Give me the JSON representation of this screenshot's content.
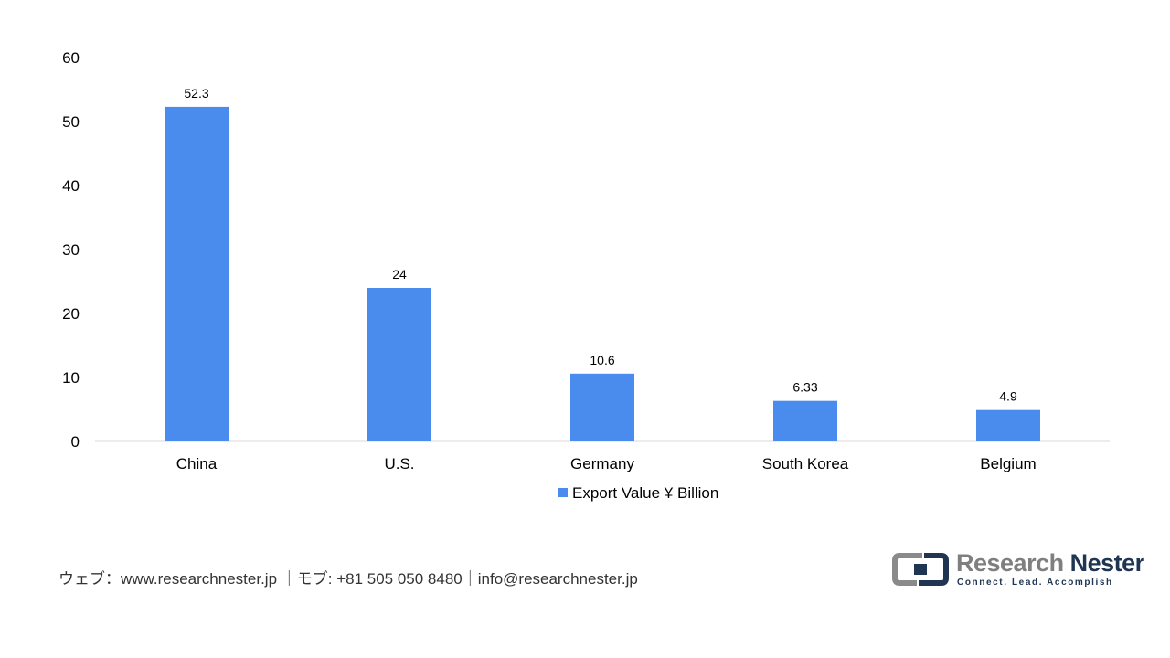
{
  "chart_data": {
    "type": "bar",
    "categories": [
      "China",
      "U.S.",
      "Germany",
      "South Korea",
      "Belgium"
    ],
    "series": [
      {
        "name": "Export Value ¥ Billion",
        "values": [
          52.3,
          24,
          10.6,
          6.33,
          4.9
        ],
        "color": "#4a8cee"
      }
    ],
    "data_labels": [
      "52.3",
      "24",
      "10.6",
      "6.33",
      "4.9"
    ],
    "yticks": [
      0,
      10,
      20,
      30,
      40,
      50,
      60
    ],
    "ylim": [
      0,
      60
    ],
    "grid": false,
    "legend_position": "bottom"
  },
  "footer": {
    "contact": "ウェブ：www.researchnester.jp ｜モブ: +81 505 050 8480｜info@researchnester.jp"
  },
  "logo": {
    "name_part1": "Research",
    "name_part2": "Nester",
    "tagline": "Connect. Lead. Accomplish",
    "icon": "research-nester-logo-mark"
  }
}
